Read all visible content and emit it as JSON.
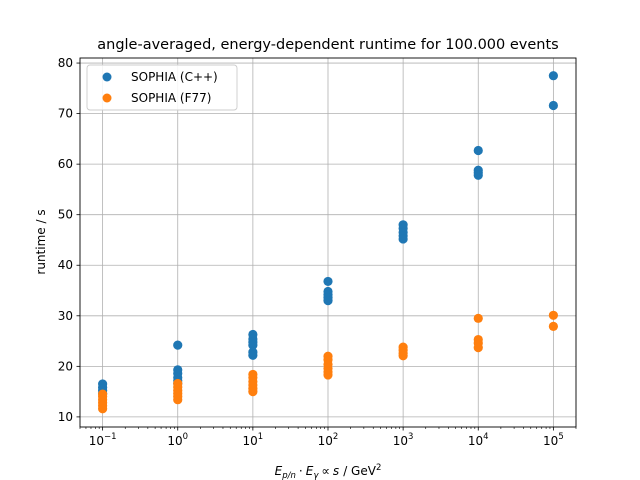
{
  "chart_data": {
    "type": "scatter",
    "title": "angle-averaged, energy-dependent runtime for 100.000 events",
    "xlabel_parts": {
      "E": "E",
      "E_sub": "p/n",
      "dot": "·",
      "Eg": "E",
      "Eg_sub": "γ",
      "propto": "∝",
      "s": "s",
      "unit": "/ GeV",
      "unit_sup": "2"
    },
    "ylabel": "runtime / s",
    "xscale": "log",
    "xlim": [
      0.05,
      200000
    ],
    "ylim": [
      8,
      81
    ],
    "x_ticks": [
      {
        "value": 0.1,
        "base": "10",
        "exp": "−1"
      },
      {
        "value": 1,
        "base": "10",
        "exp": "0"
      },
      {
        "value": 10,
        "base": "10",
        "exp": "1"
      },
      {
        "value": 100,
        "base": "10",
        "exp": "2"
      },
      {
        "value": 1000,
        "base": "10",
        "exp": "3"
      },
      {
        "value": 10000,
        "base": "10",
        "exp": "4"
      },
      {
        "value": 100000,
        "base": "10",
        "exp": "5"
      }
    ],
    "y_ticks": [
      10,
      20,
      30,
      40,
      50,
      60,
      70,
      80
    ],
    "grid": true,
    "legend_position": "top-left",
    "series": [
      {
        "name": "SOPHIA (C++)",
        "color": "#1f77b4",
        "points": [
          {
            "x": 0.1,
            "y": 16.5
          },
          {
            "x": 0.1,
            "y": 15.8
          },
          {
            "x": 0.1,
            "y": 15.2
          },
          {
            "x": 0.1,
            "y": 14.6
          },
          {
            "x": 1,
            "y": 24.2
          },
          {
            "x": 1,
            "y": 19.3
          },
          {
            "x": 1,
            "y": 18.6
          },
          {
            "x": 1,
            "y": 17.8
          },
          {
            "x": 1,
            "y": 17.2
          },
          {
            "x": 1,
            "y": 16.6
          },
          {
            "x": 10,
            "y": 26.3
          },
          {
            "x": 10,
            "y": 25.4
          },
          {
            "x": 10,
            "y": 24.8
          },
          {
            "x": 10,
            "y": 24.2
          },
          {
            "x": 10,
            "y": 22.8
          },
          {
            "x": 10,
            "y": 22.2
          },
          {
            "x": 100,
            "y": 36.8
          },
          {
            "x": 100,
            "y": 34.8
          },
          {
            "x": 100,
            "y": 34.2
          },
          {
            "x": 100,
            "y": 33.6
          },
          {
            "x": 100,
            "y": 33.0
          },
          {
            "x": 1000,
            "y": 48.0
          },
          {
            "x": 1000,
            "y": 47.3
          },
          {
            "x": 1000,
            "y": 46.5
          },
          {
            "x": 1000,
            "y": 45.8
          },
          {
            "x": 1000,
            "y": 45.2
          },
          {
            "x": 10000,
            "y": 62.7
          },
          {
            "x": 10000,
            "y": 58.8
          },
          {
            "x": 10000,
            "y": 58.3
          },
          {
            "x": 10000,
            "y": 57.8
          },
          {
            "x": 100000,
            "y": 77.5
          },
          {
            "x": 100000,
            "y": 71.6
          }
        ]
      },
      {
        "name": "SOPHIA (F77)",
        "color": "#ff7f0e",
        "points": [
          {
            "x": 0.1,
            "y": 14.5
          },
          {
            "x": 0.1,
            "y": 14.0
          },
          {
            "x": 0.1,
            "y": 13.4
          },
          {
            "x": 0.1,
            "y": 12.8
          },
          {
            "x": 0.1,
            "y": 12.2
          },
          {
            "x": 0.1,
            "y": 11.6
          },
          {
            "x": 1,
            "y": 16.6
          },
          {
            "x": 1,
            "y": 15.9
          },
          {
            "x": 1,
            "y": 15.2
          },
          {
            "x": 1,
            "y": 14.6
          },
          {
            "x": 1,
            "y": 14.0
          },
          {
            "x": 1,
            "y": 13.4
          },
          {
            "x": 10,
            "y": 18.4
          },
          {
            "x": 10,
            "y": 17.8
          },
          {
            "x": 10,
            "y": 17.0
          },
          {
            "x": 10,
            "y": 16.3
          },
          {
            "x": 10,
            "y": 15.6
          },
          {
            "x": 10,
            "y": 15.0
          },
          {
            "x": 100,
            "y": 22.0
          },
          {
            "x": 100,
            "y": 21.3
          },
          {
            "x": 100,
            "y": 20.4
          },
          {
            "x": 100,
            "y": 19.6
          },
          {
            "x": 100,
            "y": 18.9
          },
          {
            "x": 100,
            "y": 18.3
          },
          {
            "x": 1000,
            "y": 23.8
          },
          {
            "x": 1000,
            "y": 23.2
          },
          {
            "x": 1000,
            "y": 22.6
          },
          {
            "x": 1000,
            "y": 22.1
          },
          {
            "x": 10000,
            "y": 29.5
          },
          {
            "x": 10000,
            "y": 25.3
          },
          {
            "x": 10000,
            "y": 24.6
          },
          {
            "x": 10000,
            "y": 23.7
          },
          {
            "x": 100000,
            "y": 30.1
          },
          {
            "x": 100000,
            "y": 27.9
          }
        ]
      }
    ]
  }
}
